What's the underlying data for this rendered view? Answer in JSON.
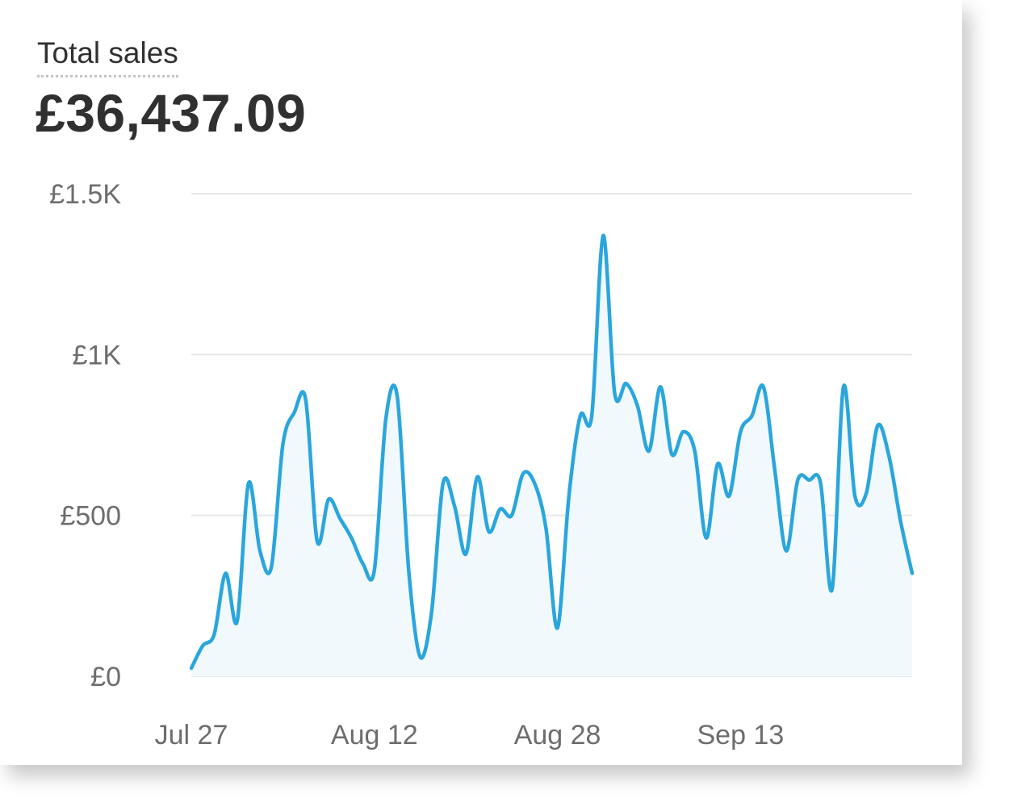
{
  "metric": {
    "label": "Total sales",
    "value": "£36,437.09"
  },
  "colors": {
    "line": "#2aa6dd",
    "fill": "#f1f9fd",
    "grid": "#e8e8e8",
    "text": "#303030",
    "tick": "#6d6d6d"
  },
  "chart_data": {
    "type": "area",
    "x_start": "2023-07-27",
    "y_ticks": [
      {
        "value": 0,
        "label": "£0"
      },
      {
        "value": 500,
        "label": "£500"
      },
      {
        "value": 1000,
        "label": "£1K"
      },
      {
        "value": 1500,
        "label": "£1.5K"
      }
    ],
    "x_ticks": [
      {
        "value": "2023-07-27",
        "label": "Jul 27"
      },
      {
        "value": "2023-08-12",
        "label": "Aug 12"
      },
      {
        "value": "2023-08-28",
        "label": "Aug 28"
      },
      {
        "value": "2023-09-13",
        "label": "Sep 13"
      }
    ],
    "ylim": [
      0,
      1500
    ],
    "xlim": [
      "2023-07-27",
      "2023-09-28"
    ],
    "grid": true,
    "x": [
      "2023-07-27",
      "2023-07-28",
      "2023-07-29",
      "2023-07-30",
      "2023-07-31",
      "2023-08-01",
      "2023-08-02",
      "2023-08-03",
      "2023-08-04",
      "2023-08-05",
      "2023-08-06",
      "2023-08-07",
      "2023-08-08",
      "2023-08-09",
      "2023-08-10",
      "2023-08-11",
      "2023-08-12",
      "2023-08-13",
      "2023-08-14",
      "2023-08-15",
      "2023-08-16",
      "2023-08-17",
      "2023-08-18",
      "2023-08-19",
      "2023-08-20",
      "2023-08-21",
      "2023-08-22",
      "2023-08-23",
      "2023-08-24",
      "2023-08-25",
      "2023-08-26",
      "2023-08-27",
      "2023-08-28",
      "2023-08-29",
      "2023-08-30",
      "2023-08-31",
      "2023-09-01",
      "2023-09-02",
      "2023-09-03",
      "2023-09-04",
      "2023-09-05",
      "2023-09-06",
      "2023-09-07",
      "2023-09-08",
      "2023-09-09",
      "2023-09-10",
      "2023-09-11",
      "2023-09-12",
      "2023-09-13",
      "2023-09-14",
      "2023-09-15",
      "2023-09-16",
      "2023-09-17",
      "2023-09-18",
      "2023-09-19",
      "2023-09-20",
      "2023-09-21",
      "2023-09-22",
      "2023-09-23",
      "2023-09-24",
      "2023-09-25",
      "2023-09-26",
      "2023-09-27",
      "2023-09-28"
    ],
    "values": [
      25,
      95,
      130,
      320,
      170,
      600,
      390,
      340,
      720,
      820,
      860,
      420,
      550,
      490,
      430,
      350,
      330,
      800,
      870,
      330,
      60,
      200,
      600,
      530,
      380,
      620,
      450,
      520,
      500,
      630,
      600,
      460,
      150,
      560,
      810,
      810,
      1370,
      880,
      910,
      840,
      700,
      900,
      690,
      760,
      700,
      430,
      660,
      560,
      760,
      810,
      900,
      640,
      390,
      610,
      610,
      600,
      270,
      900,
      560,
      570,
      780,
      680,
      480,
      320
    ]
  }
}
